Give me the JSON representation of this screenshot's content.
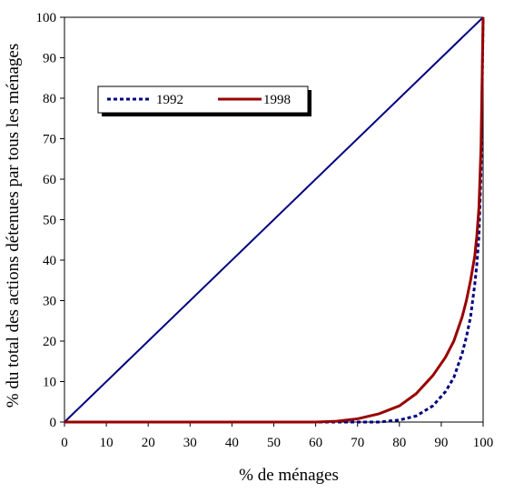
{
  "chart_data": {
    "type": "line",
    "title": "",
    "xlabel": "% de ménages",
    "ylabel": "% du total des actions détenues par tous les ménages",
    "xlim": [
      0,
      100
    ],
    "ylim": [
      0,
      100
    ],
    "xticks": [
      "0",
      "10",
      "20",
      "30",
      "40",
      "50",
      "60",
      "70",
      "80",
      "90",
      "100"
    ],
    "yticks": [
      "0",
      "10",
      "20",
      "30",
      "40",
      "50",
      "60",
      "70",
      "80",
      "90",
      "100"
    ],
    "grid": false,
    "legend_position": "top-left",
    "equality_line": {
      "x": [
        0,
        100
      ],
      "y": [
        0,
        100
      ],
      "color": "#000080"
    },
    "series": [
      {
        "name": "1992",
        "style": "dotted",
        "color": "#000080",
        "x": [
          0,
          60,
          70,
          75,
          80,
          84,
          88,
          91,
          93,
          95,
          96,
          97,
          98,
          98.5,
          99,
          99.5,
          100
        ],
        "y": [
          0,
          0,
          0,
          0,
          0.5,
          1.5,
          4,
          7.5,
          11,
          17,
          21,
          26,
          34,
          39,
          46,
          62,
          100
        ]
      },
      {
        "name": "1998",
        "style": "solid",
        "color": "#990000",
        "x": [
          0,
          60,
          65,
          70,
          75,
          80,
          84,
          88,
          91,
          93,
          95,
          96,
          97,
          98,
          98.5,
          99,
          99.5,
          100
        ],
        "y": [
          0,
          0,
          0.2,
          0.8,
          2,
          4,
          7,
          11.5,
          16,
          20,
          26,
          30,
          35,
          41,
          46,
          53,
          68,
          100
        ]
      }
    ]
  }
}
